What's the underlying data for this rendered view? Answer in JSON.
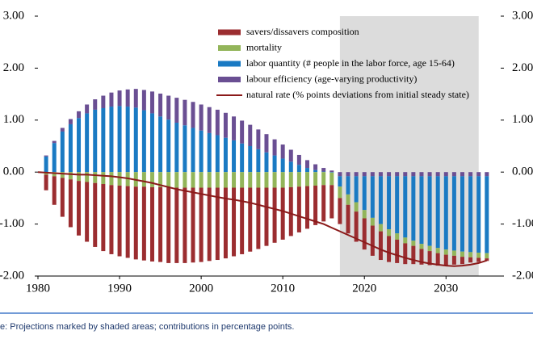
{
  "chart_data": {
    "type": "stacked-bar-line",
    "x": [
      1980,
      1981,
      1982,
      1983,
      1984,
      1985,
      1986,
      1987,
      1988,
      1989,
      1990,
      1991,
      1992,
      1993,
      1994,
      1995,
      1996,
      1997,
      1998,
      1999,
      2000,
      2001,
      2002,
      2003,
      2004,
      2005,
      2006,
      2007,
      2008,
      2009,
      2010,
      2011,
      2012,
      2013,
      2014,
      2015,
      2016,
      2017,
      2018,
      2019,
      2020,
      2021,
      2022,
      2023,
      2024,
      2025,
      2026,
      2027,
      2028,
      2029,
      2030,
      2031,
      2032,
      2033,
      2034,
      2035
    ],
    "series": [
      {
        "name": "savers/dissavers composition",
        "color": "#9b2d30",
        "values": [
          null,
          -0.3,
          -0.55,
          -0.75,
          -0.92,
          -1.05,
          -1.15,
          -1.23,
          -1.29,
          -1.33,
          -1.36,
          -1.38,
          -1.4,
          -1.42,
          -1.43,
          -1.44,
          -1.45,
          -1.45,
          -1.45,
          -1.44,
          -1.43,
          -1.41,
          -1.39,
          -1.36,
          -1.32,
          -1.28,
          -1.23,
          -1.18,
          -1.12,
          -1.06,
          -1.0,
          -0.94,
          -0.88,
          -0.82,
          -0.76,
          -0.7,
          -0.64,
          -0.5,
          -0.55,
          -0.58,
          -0.6,
          -0.58,
          -0.55,
          -0.5,
          -0.45,
          -0.4,
          -0.35,
          -0.3,
          -0.27,
          -0.24,
          -0.2,
          -0.17,
          -0.14,
          -0.1,
          -0.08,
          -0.05
        ]
      },
      {
        "name": "mortality",
        "color": "#93b55a",
        "values": [
          null,
          -0.05,
          -0.08,
          -0.11,
          -0.14,
          -0.17,
          -0.19,
          -0.21,
          -0.23,
          -0.25,
          -0.26,
          -0.27,
          -0.28,
          -0.28,
          -0.29,
          -0.29,
          -0.3,
          -0.3,
          -0.3,
          -0.3,
          -0.3,
          -0.3,
          -0.3,
          -0.3,
          -0.3,
          -0.3,
          -0.3,
          -0.3,
          -0.3,
          -0.3,
          -0.3,
          -0.29,
          -0.28,
          -0.27,
          -0.26,
          -0.25,
          -0.24,
          -0.22,
          -0.2,
          -0.18,
          -0.16,
          -0.15,
          -0.14,
          -0.13,
          -0.12,
          -0.11,
          -0.1,
          -0.1,
          -0.1,
          -0.1,
          -0.1,
          -0.1,
          -0.1,
          -0.1,
          -0.1,
          -0.1
        ]
      },
      {
        "name": "labor quantity (# people in the labor force, age 15-64)",
        "color": "#1a7ac3",
        "values": [
          null,
          0.3,
          0.56,
          0.78,
          0.92,
          1.04,
          1.13,
          1.2,
          1.23,
          1.26,
          1.27,
          1.26,
          1.24,
          1.19,
          1.13,
          1.07,
          1.01,
          0.95,
          0.9,
          0.85,
          0.8,
          0.75,
          0.71,
          0.66,
          0.61,
          0.55,
          0.5,
          0.44,
          0.38,
          0.32,
          0.26,
          0.2,
          0.14,
          0.08,
          0.04,
          0.01,
          -0.01,
          -0.2,
          -0.35,
          -0.5,
          -0.65,
          -0.8,
          -0.92,
          -1.02,
          -1.1,
          -1.18,
          -1.24,
          -1.3,
          -1.34,
          -1.38,
          -1.41,
          -1.43,
          -1.45,
          -1.46,
          -1.47,
          -1.48
        ]
      },
      {
        "name": "labour efficiency (age-varying productivity)",
        "color": "#6a4f93",
        "values": [
          null,
          0.02,
          0.04,
          0.07,
          0.1,
          0.13,
          0.17,
          0.2,
          0.24,
          0.27,
          0.3,
          0.33,
          0.36,
          0.39,
          0.42,
          0.44,
          0.46,
          0.48,
          0.49,
          0.5,
          0.5,
          0.5,
          0.49,
          0.48,
          0.46,
          0.44,
          0.41,
          0.38,
          0.35,
          0.31,
          0.27,
          0.23,
          0.19,
          0.15,
          0.11,
          0.07,
          0.03,
          -0.08,
          -0.08,
          -0.08,
          -0.08,
          -0.08,
          -0.08,
          -0.08,
          -0.08,
          -0.08,
          -0.08,
          -0.08,
          -0.08,
          -0.08,
          -0.08,
          -0.08,
          -0.08,
          -0.08,
          -0.08,
          -0.08
        ]
      },
      {
        "name": "natural rate (% points deviations from initial steady state)",
        "color": "#8b1a1a",
        "kind": "line",
        "values": [
          0,
          -0.01,
          -0.02,
          -0.03,
          -0.04,
          -0.05,
          -0.05,
          -0.06,
          -0.07,
          -0.08,
          -0.1,
          -0.12,
          -0.15,
          -0.18,
          -0.21,
          -0.25,
          -0.29,
          -0.33,
          -0.36,
          -0.39,
          -0.42,
          -0.45,
          -0.48,
          -0.51,
          -0.53,
          -0.56,
          -0.59,
          -0.63,
          -0.67,
          -0.71,
          -0.75,
          -0.8,
          -0.85,
          -0.9,
          -0.95,
          -1.0,
          -1.07,
          -1.14,
          -1.21,
          -1.28,
          -1.35,
          -1.42,
          -1.49,
          -1.55,
          -1.6,
          -1.65,
          -1.69,
          -1.73,
          -1.76,
          -1.78,
          -1.8,
          -1.81,
          -1.8,
          -1.78,
          -1.75,
          -1.7
        ]
      }
    ],
    "xlim": [
      1980,
      2036.7
    ],
    "xticks": [
      1980,
      1990,
      2000,
      2010,
      2020,
      2030
    ],
    "ylim": [
      -2,
      3
    ],
    "yticks": [
      {
        "value": 3,
        "label": "3.00"
      },
      {
        "value": 2,
        "label": "2.00"
      },
      {
        "value": 1,
        "label": "1.00"
      },
      {
        "value": 0,
        "label": "0.00"
      },
      {
        "value": -1,
        "label": "-1.00"
      },
      {
        "value": -2,
        "label": "-2.00"
      }
    ],
    "y2lim": [
      -2,
      3
    ],
    "y2ticks": [
      {
        "value": 3,
        "label": "3.00"
      },
      {
        "value": 2,
        "label": "2.00"
      },
      {
        "value": 1,
        "label": "1.00"
      },
      {
        "value": 0,
        "label": "0.00"
      },
      {
        "value": -1,
        "label": "-1.00"
      },
      {
        "value": -2,
        "label": "-2.00"
      }
    ],
    "shaded_x": [
      2017,
      2034
    ],
    "shade_color": "#dcdcdc",
    "note": "e: Projections marked by shaded areas; contributions in percentage points."
  }
}
